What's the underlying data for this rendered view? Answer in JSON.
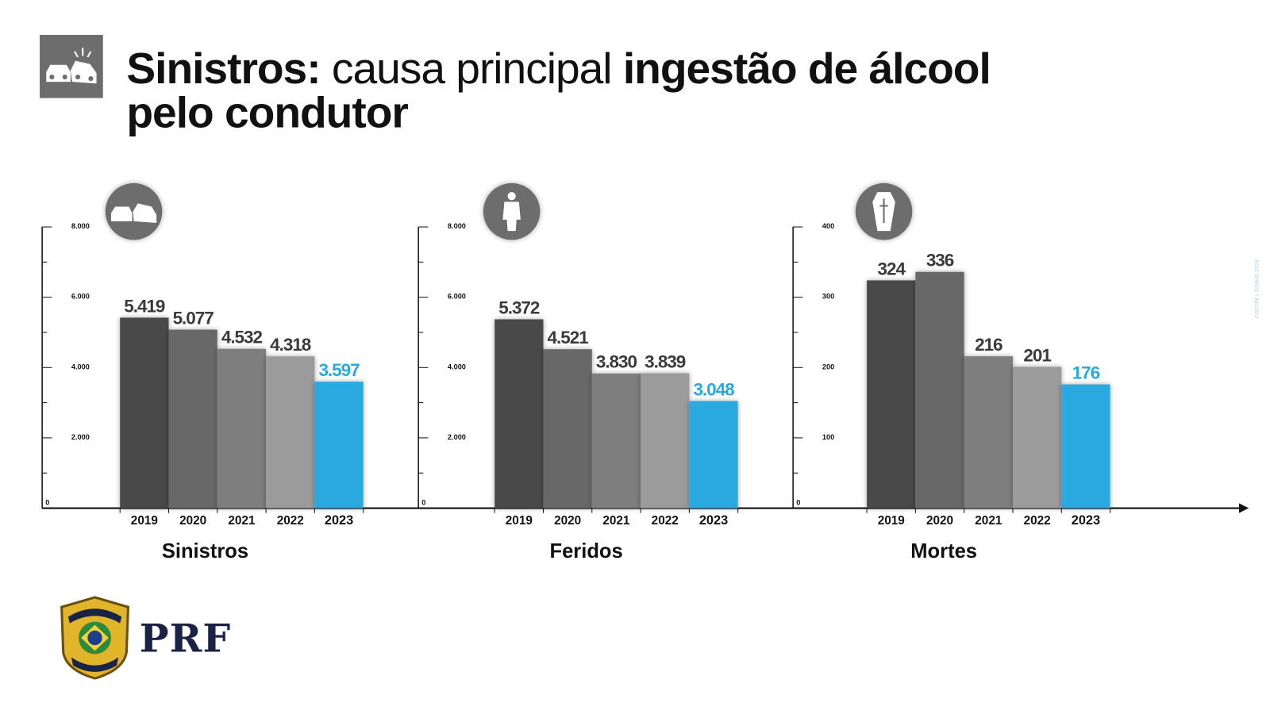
{
  "header": {
    "title_part1": "Sinistros:",
    "title_part2": " causa principal ",
    "title_part3": "ingestão de álcool",
    "title_line2": "pelo condutor",
    "icon": "car-crash-icon"
  },
  "credit": "CGCOM | JUNHO 2024",
  "logo": {
    "badge_text_top": "POLÍCIA",
    "badge_text_bottom": "RODOVIÁRIA FEDERAL",
    "wordmark": "PRF"
  },
  "colors": {
    "2019": "#4a4a4a",
    "2020": "#676767",
    "2021": "#7e7e7e",
    "2022": "#9b9b9b",
    "2023": "#29a9e0",
    "icon_bg": "#6d6d6d"
  },
  "chart_data": [
    {
      "type": "bar",
      "title": "Sinistros",
      "icon": "car-crash-icon",
      "categories": [
        "2019",
        "2020",
        "2021",
        "2022",
        "2023"
      ],
      "values": [
        5419,
        5077,
        4532,
        4318,
        3597
      ],
      "value_labels": [
        "5.419",
        "5.077",
        "4.532",
        "4.318",
        "3.597"
      ],
      "ylim": [
        0,
        8000
      ],
      "yticks": [
        0,
        2000,
        4000,
        6000,
        8000
      ],
      "ytick_labels": [
        "0",
        "2.000",
        "4.000",
        "6.000",
        "8.000"
      ],
      "highlight": "2023"
    },
    {
      "type": "bar",
      "title": "Feridos",
      "icon": "injured-person-icon",
      "categories": [
        "2019",
        "2020",
        "2021",
        "2022",
        "2023"
      ],
      "values": [
        5372,
        4521,
        3830,
        3839,
        3048
      ],
      "value_labels": [
        "5.372",
        "4.521",
        "3.830",
        "3.839",
        "3.048"
      ],
      "ylim": [
        0,
        8000
      ],
      "yticks": [
        0,
        2000,
        4000,
        6000,
        8000
      ],
      "ytick_labels": [
        "0",
        "2.000",
        "4.000",
        "6.000",
        "8.000"
      ],
      "highlight": "2023"
    },
    {
      "type": "bar",
      "title": "Mortes",
      "icon": "coffin-icon",
      "categories": [
        "2019",
        "2020",
        "2021",
        "2022",
        "2023"
      ],
      "values": [
        324,
        336,
        216,
        201,
        176
      ],
      "value_labels": [
        "324",
        "336",
        "216",
        "201",
        "176"
      ],
      "ylim": [
        0,
        400
      ],
      "yticks": [
        0,
        100,
        200,
        300,
        400
      ],
      "ytick_labels": [
        "0",
        "100",
        "200",
        "300",
        "400"
      ],
      "highlight": "2023"
    }
  ]
}
